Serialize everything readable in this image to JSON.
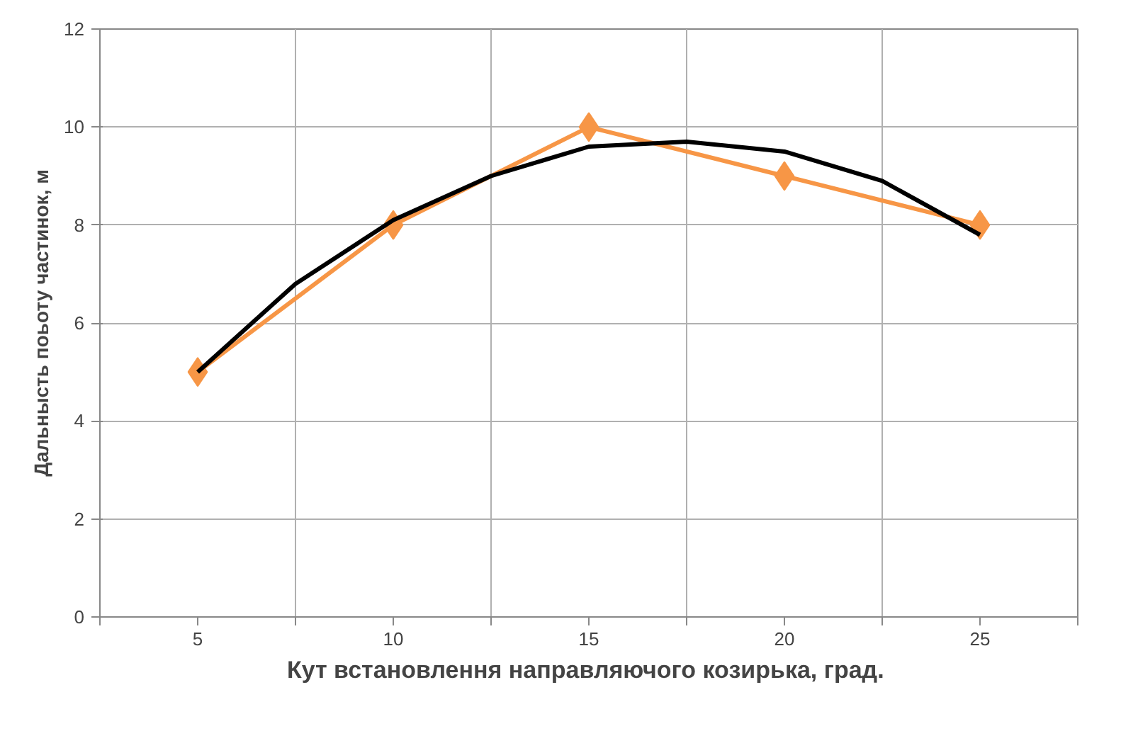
{
  "chart_data": {
    "type": "line",
    "xlabel": "Кут встановлення направляючого  козирька, град.",
    "ylabel": "Дальнысть поьоту частинок, м",
    "x": [
      5,
      10,
      15,
      20,
      25
    ],
    "xlim": [
      2.5,
      27.5
    ],
    "xticks": [
      {
        "value": 2.5,
        "label": null
      },
      5,
      {
        "value": 7.5,
        "label": null
      },
      10,
      {
        "value": 12.5,
        "label": null
      },
      15,
      {
        "value": 17.5,
        "label": null
      },
      20,
      {
        "value": 22.5,
        "label": null
      },
      25,
      {
        "value": 27.5,
        "label": null
      }
    ],
    "ylim": [
      0,
      12
    ],
    "yticks": [
      0,
      2,
      4,
      6,
      8,
      10,
      12
    ],
    "grid": true,
    "series": [
      {
        "color": "#f79646",
        "values": [
          5,
          8,
          10,
          9,
          8
        ],
        "marker": "diamond"
      },
      {
        "type": "line",
        "color": "#000000",
        "x": [
          5,
          7.5,
          10,
          12.5,
          15,
          17.5,
          20,
          22.5,
          25
        ],
        "values": [
          5.0,
          6.8,
          8.1,
          9.0,
          9.6,
          9.7,
          9.5,
          8.9,
          7.8
        ],
        "marker": "none"
      }
    ]
  }
}
